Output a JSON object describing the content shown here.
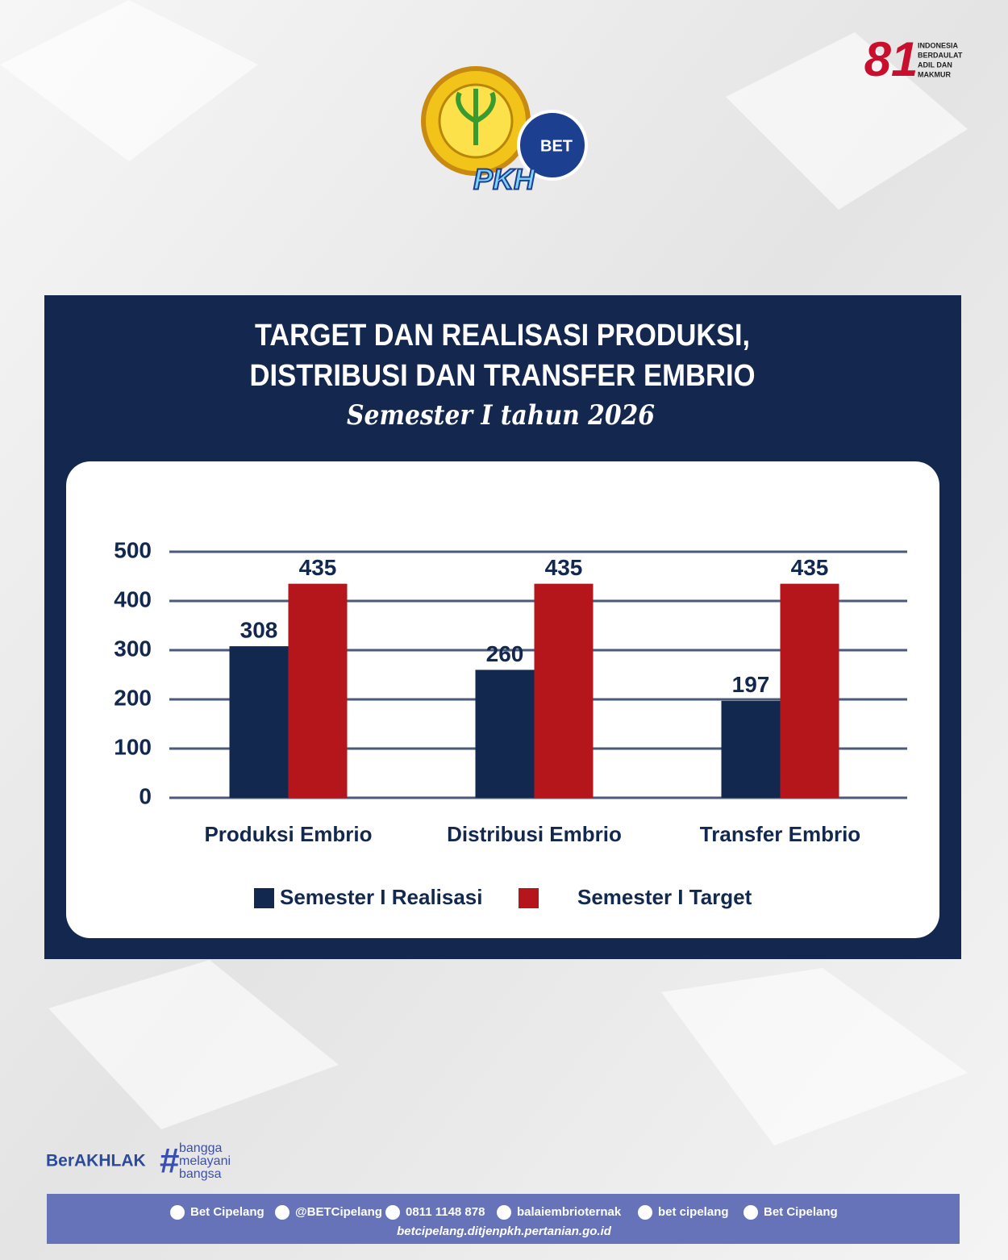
{
  "header": {
    "logo_left": "PKH",
    "logo_badge": "BET",
    "logo_right_number": "81",
    "logo_right_text": [
      "INDONESIA",
      "BERDAULAT",
      "ADIL DAN",
      "MAKMUR"
    ]
  },
  "chart_data": {
    "type": "bar",
    "title": [
      "TARGET DAN REALISASI PRODUKSI,",
      "DISTRIBUSI DAN TRANSFER EMBRIO"
    ],
    "subtitle": "Semester I tahun 2026",
    "categories": [
      "Produksi Embrio",
      "Distribusi Embrio",
      "Transfer Embrio"
    ],
    "series": [
      {
        "name": "Semester I Realisasi",
        "color": "#13284f",
        "values": [
          308,
          260,
          197
        ]
      },
      {
        "name": "Semester I Target",
        "color": "#b5161b",
        "values": [
          435,
          435,
          435
        ]
      }
    ],
    "ylim": [
      0,
      500
    ],
    "yticks": [
      0,
      100,
      200,
      300,
      400,
      500
    ],
    "grid": true,
    "legend": "bottom"
  },
  "footer": {
    "brand": "BerAKHLAK",
    "tagline": [
      "bangga",
      "melayani",
      "bangsa"
    ],
    "socials": [
      "Bet Cipelang",
      "@BETCipelang",
      "0811 1148 878",
      "balaiembrioternak",
      "bet cipelang",
      "Bet Cipelang"
    ],
    "website": "betcipelang.ditjenpkh.pertanian.go.id"
  }
}
